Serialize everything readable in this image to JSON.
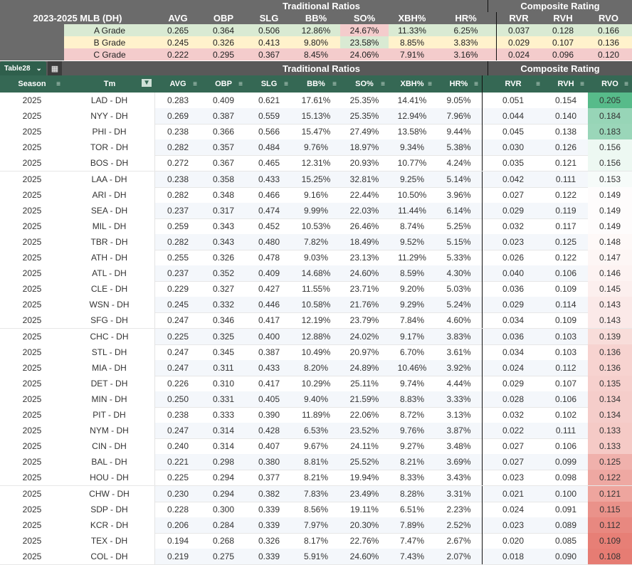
{
  "summary_header": {
    "traditional": "Traditional Ratios",
    "composite": "Composite Rating"
  },
  "summary_columns": [
    "2023-2025 MLB (DH)",
    "AVG",
    "OBP",
    "SLG",
    "BB%",
    "SO%",
    "XBH%",
    "HR%",
    "RVR",
    "RVH",
    "RVO"
  ],
  "grades": [
    {
      "name": "A Grade",
      "values": [
        "0.265",
        "0.364",
        "0.506",
        "12.86%",
        "24.67%",
        "11.33%",
        "6.25%",
        "0.037",
        "0.128",
        "0.166"
      ]
    },
    {
      "name": "B Grade",
      "values": [
        "0.245",
        "0.326",
        "0.413",
        "9.80%",
        "23.58%",
        "8.85%",
        "3.83%",
        "0.029",
        "0.107",
        "0.136"
      ]
    },
    {
      "name": "C Grade",
      "values": [
        "0.222",
        "0.295",
        "0.367",
        "8.45%",
        "24.06%",
        "7.91%",
        "3.16%",
        "0.024",
        "0.096",
        "0.120"
      ]
    }
  ],
  "table": {
    "name": "Table28",
    "group_traditional": "Traditional Ratios",
    "group_composite": "Composite Rating",
    "columns": [
      "Season",
      "Tm",
      "AVG",
      "OBP",
      "SLG",
      "BB%",
      "SO%",
      "XBH%",
      "HR%",
      "RVR",
      "RVH",
      "RVO"
    ],
    "rows": [
      [
        "2025",
        "LAD - DH",
        "0.283",
        "0.409",
        "0.621",
        "17.61%",
        "25.35%",
        "14.41%",
        "9.05%",
        "0.051",
        "0.154",
        "0.205"
      ],
      [
        "2025",
        "NYY - DH",
        "0.269",
        "0.387",
        "0.559",
        "15.13%",
        "25.35%",
        "12.94%",
        "7.96%",
        "0.044",
        "0.140",
        "0.184"
      ],
      [
        "2025",
        "PHI - DH",
        "0.238",
        "0.366",
        "0.566",
        "15.47%",
        "27.49%",
        "13.58%",
        "9.44%",
        "0.045",
        "0.138",
        "0.183"
      ],
      [
        "2025",
        "TOR - DH",
        "0.282",
        "0.357",
        "0.484",
        "9.76%",
        "18.97%",
        "9.34%",
        "5.38%",
        "0.030",
        "0.126",
        "0.156"
      ],
      [
        "2025",
        "BOS - DH",
        "0.272",
        "0.367",
        "0.465",
        "12.31%",
        "20.93%",
        "10.77%",
        "4.24%",
        "0.035",
        "0.121",
        "0.156"
      ],
      [
        "2025",
        "LAA - DH",
        "0.238",
        "0.358",
        "0.433",
        "15.25%",
        "32.81%",
        "9.25%",
        "5.14%",
        "0.042",
        "0.111",
        "0.153"
      ],
      [
        "2025",
        "ARI - DH",
        "0.282",
        "0.348",
        "0.466",
        "9.16%",
        "22.44%",
        "10.50%",
        "3.96%",
        "0.027",
        "0.122",
        "0.149"
      ],
      [
        "2025",
        "SEA - DH",
        "0.237",
        "0.317",
        "0.474",
        "9.99%",
        "22.03%",
        "11.44%",
        "6.14%",
        "0.029",
        "0.119",
        "0.149"
      ],
      [
        "2025",
        "MIL - DH",
        "0.259",
        "0.343",
        "0.452",
        "10.53%",
        "26.46%",
        "8.74%",
        "5.25%",
        "0.032",
        "0.117",
        "0.149"
      ],
      [
        "2025",
        "TBR - DH",
        "0.282",
        "0.343",
        "0.480",
        "7.82%",
        "18.49%",
        "9.52%",
        "5.15%",
        "0.023",
        "0.125",
        "0.148"
      ],
      [
        "2025",
        "ATH - DH",
        "0.255",
        "0.326",
        "0.478",
        "9.03%",
        "23.13%",
        "11.29%",
        "5.33%",
        "0.026",
        "0.122",
        "0.147"
      ],
      [
        "2025",
        "ATL - DH",
        "0.237",
        "0.352",
        "0.409",
        "14.68%",
        "24.60%",
        "8.59%",
        "4.30%",
        "0.040",
        "0.106",
        "0.146"
      ],
      [
        "2025",
        "CLE - DH",
        "0.229",
        "0.327",
        "0.427",
        "11.55%",
        "23.71%",
        "9.20%",
        "5.03%",
        "0.036",
        "0.109",
        "0.145"
      ],
      [
        "2025",
        "WSN - DH",
        "0.245",
        "0.332",
        "0.446",
        "10.58%",
        "21.76%",
        "9.29%",
        "5.24%",
        "0.029",
        "0.114",
        "0.143"
      ],
      [
        "2025",
        "SFG - DH",
        "0.247",
        "0.346",
        "0.417",
        "12.19%",
        "23.79%",
        "7.84%",
        "4.60%",
        "0.034",
        "0.109",
        "0.143"
      ],
      [
        "2025",
        "CHC - DH",
        "0.225",
        "0.325",
        "0.400",
        "12.88%",
        "24.02%",
        "9.17%",
        "3.83%",
        "0.036",
        "0.103",
        "0.139"
      ],
      [
        "2025",
        "STL - DH",
        "0.247",
        "0.345",
        "0.387",
        "10.49%",
        "20.97%",
        "6.70%",
        "3.61%",
        "0.034",
        "0.103",
        "0.136"
      ],
      [
        "2025",
        "MIA - DH",
        "0.247",
        "0.311",
        "0.433",
        "8.20%",
        "24.89%",
        "10.46%",
        "3.92%",
        "0.024",
        "0.112",
        "0.136"
      ],
      [
        "2025",
        "DET - DH",
        "0.226",
        "0.310",
        "0.417",
        "10.29%",
        "25.11%",
        "9.74%",
        "4.44%",
        "0.029",
        "0.107",
        "0.135"
      ],
      [
        "2025",
        "MIN - DH",
        "0.250",
        "0.331",
        "0.405",
        "9.40%",
        "21.59%",
        "8.83%",
        "3.33%",
        "0.028",
        "0.106",
        "0.134"
      ],
      [
        "2025",
        "PIT - DH",
        "0.238",
        "0.333",
        "0.390",
        "11.89%",
        "22.06%",
        "8.72%",
        "3.13%",
        "0.032",
        "0.102",
        "0.134"
      ],
      [
        "2025",
        "NYM - DH",
        "0.247",
        "0.314",
        "0.428",
        "6.53%",
        "23.52%",
        "9.76%",
        "3.87%",
        "0.022",
        "0.111",
        "0.133"
      ],
      [
        "2025",
        "CIN - DH",
        "0.240",
        "0.314",
        "0.407",
        "9.67%",
        "24.11%",
        "9.27%",
        "3.48%",
        "0.027",
        "0.106",
        "0.133"
      ],
      [
        "2025",
        "BAL - DH",
        "0.221",
        "0.298",
        "0.380",
        "8.81%",
        "25.52%",
        "8.21%",
        "3.69%",
        "0.027",
        "0.099",
        "0.125"
      ],
      [
        "2025",
        "HOU - DH",
        "0.225",
        "0.294",
        "0.377",
        "8.21%",
        "19.94%",
        "8.33%",
        "3.43%",
        "0.023",
        "0.098",
        "0.122"
      ],
      [
        "2025",
        "CHW - DH",
        "0.230",
        "0.294",
        "0.382",
        "7.83%",
        "23.49%",
        "8.28%",
        "3.31%",
        "0.021",
        "0.100",
        "0.121"
      ],
      [
        "2025",
        "SDP - DH",
        "0.228",
        "0.300",
        "0.339",
        "8.56%",
        "19.11%",
        "6.51%",
        "2.23%",
        "0.024",
        "0.091",
        "0.115"
      ],
      [
        "2025",
        "KCR - DH",
        "0.206",
        "0.284",
        "0.339",
        "7.97%",
        "20.30%",
        "7.89%",
        "2.52%",
        "0.023",
        "0.089",
        "0.112"
      ],
      [
        "2025",
        "TEX - DH",
        "0.194",
        "0.268",
        "0.326",
        "8.17%",
        "22.76%",
        "7.47%",
        "2.67%",
        "0.020",
        "0.085",
        "0.109"
      ],
      [
        "2025",
        "COL - DH",
        "0.219",
        "0.275",
        "0.339",
        "5.91%",
        "24.60%",
        "7.43%",
        "2.07%",
        "0.018",
        "0.090",
        "0.108"
      ]
    ]
  },
  "colors": {
    "header_green": "#356854",
    "grade_a": "#d9ead3",
    "grade_b": "#fff2cc",
    "grade_c": "#f4cccc",
    "rvo_high": "#57bb8a",
    "rvo_mid": "#ffffff",
    "rvo_low": "#e67c73"
  },
  "icons": {
    "table_chevron": "chevron-down-icon",
    "table_menu": "table-grid-icon",
    "column_filter": "filter-lines-icon",
    "active_filter": "filter-funnel-icon"
  }
}
